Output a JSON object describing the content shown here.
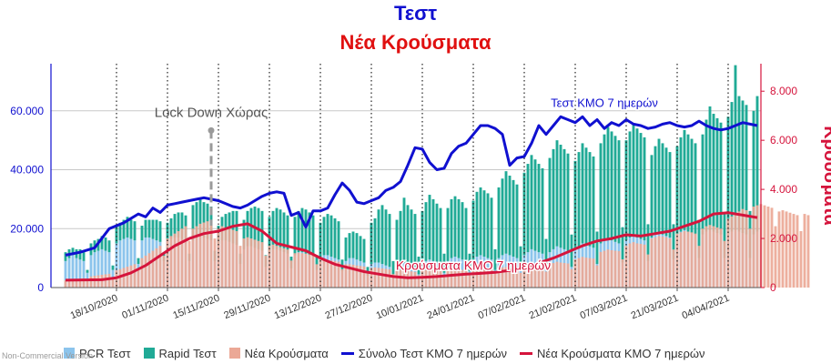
{
  "title_main": "Τεστ",
  "title_sub": "Νέα Κρούσματα",
  "credit": "Non-Commercial Version",
  "colors": {
    "pcr": "#8cc4ec",
    "rapid": "#20aa96",
    "cases": "#eba896",
    "tests_ma": "#1010d0",
    "cases_ma": "#d5143c",
    "left_axis": "#1010d0",
    "right_axis": "#d5143c",
    "title_main": "#1010d0",
    "title_sub": "#e01010"
  },
  "chart_data": {
    "type": "bar",
    "title": "Τεστ",
    "subtitle": "Νέα Κρούσματα",
    "y_left": {
      "ticks": [
        "0",
        "20.000",
        "40.000",
        "60.000"
      ],
      "range": [
        0,
        76000
      ]
    },
    "y_right": {
      "label": "Κρούσματα",
      "ticks": [
        "0",
        "2.000",
        "4.000",
        "6.000",
        "8.000"
      ],
      "range": [
        0,
        9120
      ]
    },
    "x_tick_labels": [
      "18/10/2020",
      "01/11/2020",
      "15/11/2020",
      "29/11/2020",
      "13/12/2020",
      "27/12/2020",
      "10/01/2021",
      "24/01/2021",
      "07/02/2021",
      "21/02/2021",
      "07/03/2021",
      "21/03/2021",
      "04/04/2021"
    ],
    "x_range": [
      "2020-10-04",
      "2021-04-13"
    ],
    "start_date": "2020-10-04",
    "series": [
      {
        "name": "PCR Τεστ",
        "kind": "bar",
        "axis": "left",
        "values": [
          9000,
          10000,
          11000,
          10000,
          9500,
          9000,
          5000,
          11000,
          12000,
          12500,
          13000,
          12500,
          12000,
          6000,
          15000,
          16000,
          16500,
          17000,
          16500,
          16000,
          8000,
          16000,
          17000,
          17000,
          16500,
          16000,
          15500,
          9000,
          16000,
          16500,
          17000,
          17000,
          16500,
          16000,
          9000,
          16000,
          17000,
          17500,
          17000,
          16500,
          16000,
          9000,
          15000,
          16000,
          16000,
          15500,
          15000,
          14500,
          8000,
          13000,
          14000,
          14000,
          13500,
          13000,
          12500,
          7000,
          12000,
          13000,
          13000,
          12500,
          12000,
          11500,
          6500,
          11000,
          12000,
          12000,
          11500,
          11000,
          10500,
          6000,
          10000,
          11000,
          11000,
          10500,
          10000,
          9500,
          5500,
          9000,
          10000,
          10000,
          9500,
          9000,
          8500,
          4000,
          8000,
          8500,
          8500,
          8000,
          7500,
          7000,
          4000,
          7000,
          8000,
          8500,
          8000,
          7500,
          7000,
          4500,
          8000,
          9000,
          9500,
          9000,
          8500,
          8000,
          5000,
          9000,
          10000,
          10500,
          10000,
          9500,
          9000,
          5500,
          9500,
          10500,
          11000,
          10500,
          10000,
          9500,
          6000,
          10000,
          11000,
          11500,
          11000,
          10500,
          10000,
          6000,
          11000,
          12000,
          13000,
          12500,
          12000,
          11500,
          6500,
          12000,
          13000,
          14000,
          13500,
          13000,
          12500,
          7000,
          13000,
          14000,
          15000,
          14500,
          14000,
          13500,
          8000,
          15000,
          16000,
          16500,
          16000,
          15500,
          15000,
          8500,
          16000,
          17000,
          17500,
          17000,
          16500,
          16000,
          9000,
          17000,
          18000,
          18500,
          18000,
          17500,
          17000,
          9500,
          18000,
          19000,
          19500,
          19000,
          18500,
          18000,
          10000,
          18000,
          19000,
          19500,
          19000,
          18500,
          18000,
          10000,
          18000,
          19000,
          19500,
          19000,
          18500,
          18000,
          10000,
          18000,
          19000
        ]
      },
      {
        "name": "Rapid Τεστ",
        "kind": "bar",
        "axis": "left",
        "values": [
          3000,
          3000,
          2500,
          3000,
          3500,
          3000,
          1000,
          4000,
          4000,
          4000,
          4500,
          4500,
          4000,
          1500,
          6000,
          6000,
          6500,
          7000,
          6500,
          6500,
          2000,
          5000,
          6000,
          6000,
          6500,
          7000,
          7000,
          2500,
          6000,
          7000,
          8000,
          8500,
          9000,
          8500,
          2500,
          12000,
          12000,
          12500,
          12000,
          12000,
          11500,
          3500,
          6000,
          8000,
          9000,
          10000,
          11000,
          11500,
          3500,
          10000,
          12000,
          13000,
          14000,
          14000,
          13500,
          4000,
          12000,
          13000,
          14000,
          14000,
          13500,
          13000,
          4000,
          13000,
          14000,
          15000,
          15000,
          14500,
          14000,
          5000,
          12000,
          13000,
          14000,
          14000,
          13500,
          13000,
          4000,
          8000,
          8500,
          9000,
          9000,
          8500,
          8000,
          3000,
          14000,
          15000,
          18000,
          20000,
          19000,
          18000,
          5000,
          16000,
          18000,
          22000,
          20000,
          19000,
          18000,
          6000,
          18000,
          20000,
          22000,
          21000,
          20000,
          19000,
          6500,
          18000,
          20000,
          20500,
          20000,
          19500,
          18000,
          6000,
          20000,
          22000,
          23000,
          22500,
          22000,
          21000,
          7000,
          24000,
          26000,
          28000,
          27000,
          26000,
          25000,
          8000,
          28000,
          30000,
          32000,
          31000,
          30000,
          29000,
          10000,
          32000,
          34000,
          36000,
          35000,
          34000,
          33000,
          11000,
          30000,
          32000,
          34000,
          33000,
          32000,
          31000,
          11000,
          34000,
          36000,
          38000,
          37000,
          36000,
          35000,
          12000,
          34000,
          36000,
          38000,
          37000,
          36000,
          35000,
          12500,
          28000,
          30000,
          32000,
          31000,
          30000,
          29000,
          12000,
          30000,
          32000,
          34000,
          33000,
          32000,
          31000,
          13000,
          34000,
          38000,
          42000,
          40000,
          39000,
          38000,
          15000,
          40000,
          44000,
          56000,
          46000,
          45000,
          44000,
          16000,
          42000,
          46000,
          48000,
          47000,
          46000,
          45000,
          18000,
          40000,
          42000
        ]
      },
      {
        "name": "Νέα Κρούσματα",
        "kind": "bar",
        "axis": "right",
        "values": [
          300,
          320,
          330,
          340,
          360,
          380,
          300,
          450,
          480,
          500,
          520,
          540,
          560,
          400,
          700,
          750,
          800,
          850,
          900,
          950,
          700,
          1200,
          1300,
          1400,
          1500,
          1600,
          1700,
          1300,
          2000,
          2100,
          2200,
          2300,
          2400,
          2500,
          1900,
          2400,
          2500,
          2600,
          2650,
          2700,
          2650,
          2000,
          2400,
          2500,
          2450,
          2400,
          2350,
          2300,
          1700,
          2000,
          2050,
          2000,
          1950,
          1900,
          1850,
          1300,
          1700,
          1750,
          1700,
          1650,
          1600,
          1550,
          1100,
          1400,
          1420,
          1400,
          1380,
          1350,
          1320,
          950,
          1150,
          1150,
          1120,
          1100,
          1080,
          1050,
          750,
          950,
          950,
          930,
          900,
          880,
          860,
          600,
          800,
          820,
          800,
          780,
          760,
          740,
          550,
          700,
          720,
          700,
          680,
          660,
          640,
          500,
          700,
          720,
          740,
          720,
          700,
          690,
          520,
          720,
          740,
          760,
          740,
          720,
          700,
          540,
          780,
          800,
          820,
          800,
          780,
          760,
          580,
          800,
          820,
          840,
          820,
          800,
          780,
          600,
          850,
          870,
          900,
          880,
          860,
          840,
          650,
          950,
          1000,
          1050,
          1020,
          1000,
          980,
          750,
          1150,
          1200,
          1250,
          1220,
          1200,
          1180,
          900,
          1450,
          1500,
          1550,
          1520,
          1500,
          1480,
          1150,
          1700,
          1800,
          1850,
          1800,
          1780,
          1750,
          1350,
          2000,
          2050,
          2100,
          2080,
          2050,
          2000,
          1550,
          2200,
          2250,
          2300,
          2280,
          2250,
          2200,
          1700,
          2400,
          2500,
          2550,
          2500,
          2450,
          2400,
          1900,
          2800,
          2900,
          3000,
          3100,
          3200,
          3150,
          2400,
          3300,
          3350,
          3400,
          3350,
          3300,
          3250,
          2500,
          3100,
          3150,
          3100,
          3050,
          3000,
          2950,
          2300,
          3000,
          2950
        ]
      },
      {
        "name": "Σύνολο Τεστ ΚΜΟ 7 ημερών",
        "kind": "line",
        "axis": "left",
        "x": [
          0,
          4,
          8,
          12,
          16,
          20,
          22,
          24,
          26,
          28,
          30,
          32,
          34,
          36,
          38,
          40,
          42,
          44,
          46,
          48,
          50,
          52,
          54,
          56,
          58,
          60,
          62,
          64,
          66,
          68,
          70,
          72,
          74,
          76,
          78,
          80,
          82,
          84,
          86,
          88,
          90,
          92,
          94,
          96,
          98,
          100,
          102,
          104,
          106,
          108,
          110,
          112,
          114,
          116,
          118,
          120,
          122,
          124,
          126,
          128,
          130,
          132,
          134,
          136,
          138,
          140,
          142,
          144,
          146,
          148,
          150,
          152,
          154,
          156,
          158,
          160,
          162,
          164,
          166,
          168,
          170,
          172,
          174,
          176,
          178,
          180,
          182,
          184,
          186,
          188,
          190
        ],
        "values": [
          11000,
          12000,
          13500,
          20000,
          22000,
          25000,
          24000,
          27000,
          25500,
          28000,
          28500,
          29000,
          29500,
          30000,
          30500,
          30000,
          29500,
          28500,
          27500,
          27000,
          28000,
          29500,
          31000,
          32000,
          32500,
          32000,
          24500,
          25500,
          20500,
          26000,
          26000,
          27000,
          31500,
          35500,
          33000,
          29000,
          28500,
          29500,
          30500,
          33000,
          34000,
          36000,
          41500,
          47500,
          47000,
          42500,
          40000,
          40500,
          45500,
          48000,
          49000,
          52000,
          55000,
          55000,
          54000,
          52000,
          41500,
          44000,
          44500,
          49000,
          55000,
          52000,
          55000,
          58000,
          57000,
          56000,
          58000,
          55000,
          57000,
          54000,
          56000,
          55000,
          57000,
          55500,
          55000,
          54000,
          54500,
          55500,
          56000,
          55000,
          54500,
          55000,
          56500,
          55000,
          54000,
          53500,
          54000,
          55000,
          56000,
          55500,
          55000
        ]
      },
      {
        "name": "Νέα Κρούσματα ΚΜΟ 7 ημερών",
        "kind": "line",
        "axis": "right",
        "x": [
          0,
          10,
          14,
          18,
          22,
          26,
          30,
          34,
          38,
          42,
          46,
          50,
          54,
          58,
          62,
          66,
          70,
          74,
          78,
          82,
          86,
          90,
          94,
          98,
          102,
          106,
          110,
          114,
          118,
          122,
          126,
          130,
          134,
          138,
          142,
          146,
          150,
          154,
          158,
          162,
          166,
          170,
          174,
          178,
          182,
          186,
          190
        ],
        "values": [
          300,
          320,
          400,
          600,
          900,
          1300,
          1700,
          2000,
          2200,
          2300,
          2500,
          2600,
          2300,
          1800,
          1650,
          1500,
          1200,
          950,
          800,
          650,
          550,
          450,
          400,
          420,
          450,
          500,
          550,
          580,
          620,
          700,
          800,
          1000,
          1200,
          1450,
          1700,
          1900,
          2000,
          2150,
          2100,
          2200,
          2300,
          2500,
          2700,
          3000,
          3050,
          2950,
          2850
        ]
      }
    ],
    "annotations": [
      {
        "text": "Lock Down Χώρας",
        "day": 40,
        "axis": "left",
        "value": 59500
      },
      {
        "text": "Τεστ ΚΜΟ 7 ημερών",
        "day": 148,
        "axis": "left",
        "value": 57000
      },
      {
        "text": "Κρούσματα ΚΜΟ 7 ημερών",
        "day": 112,
        "axis": "right",
        "value": 950
      }
    ],
    "vertical_markers_days": [
      14,
      28,
      42,
      56,
      70,
      84,
      98,
      112,
      126,
      140,
      154,
      168,
      182
    ],
    "legend_position": "bottom",
    "grid": "horizontal",
    "ylabel_right": "Κρούσματα"
  }
}
